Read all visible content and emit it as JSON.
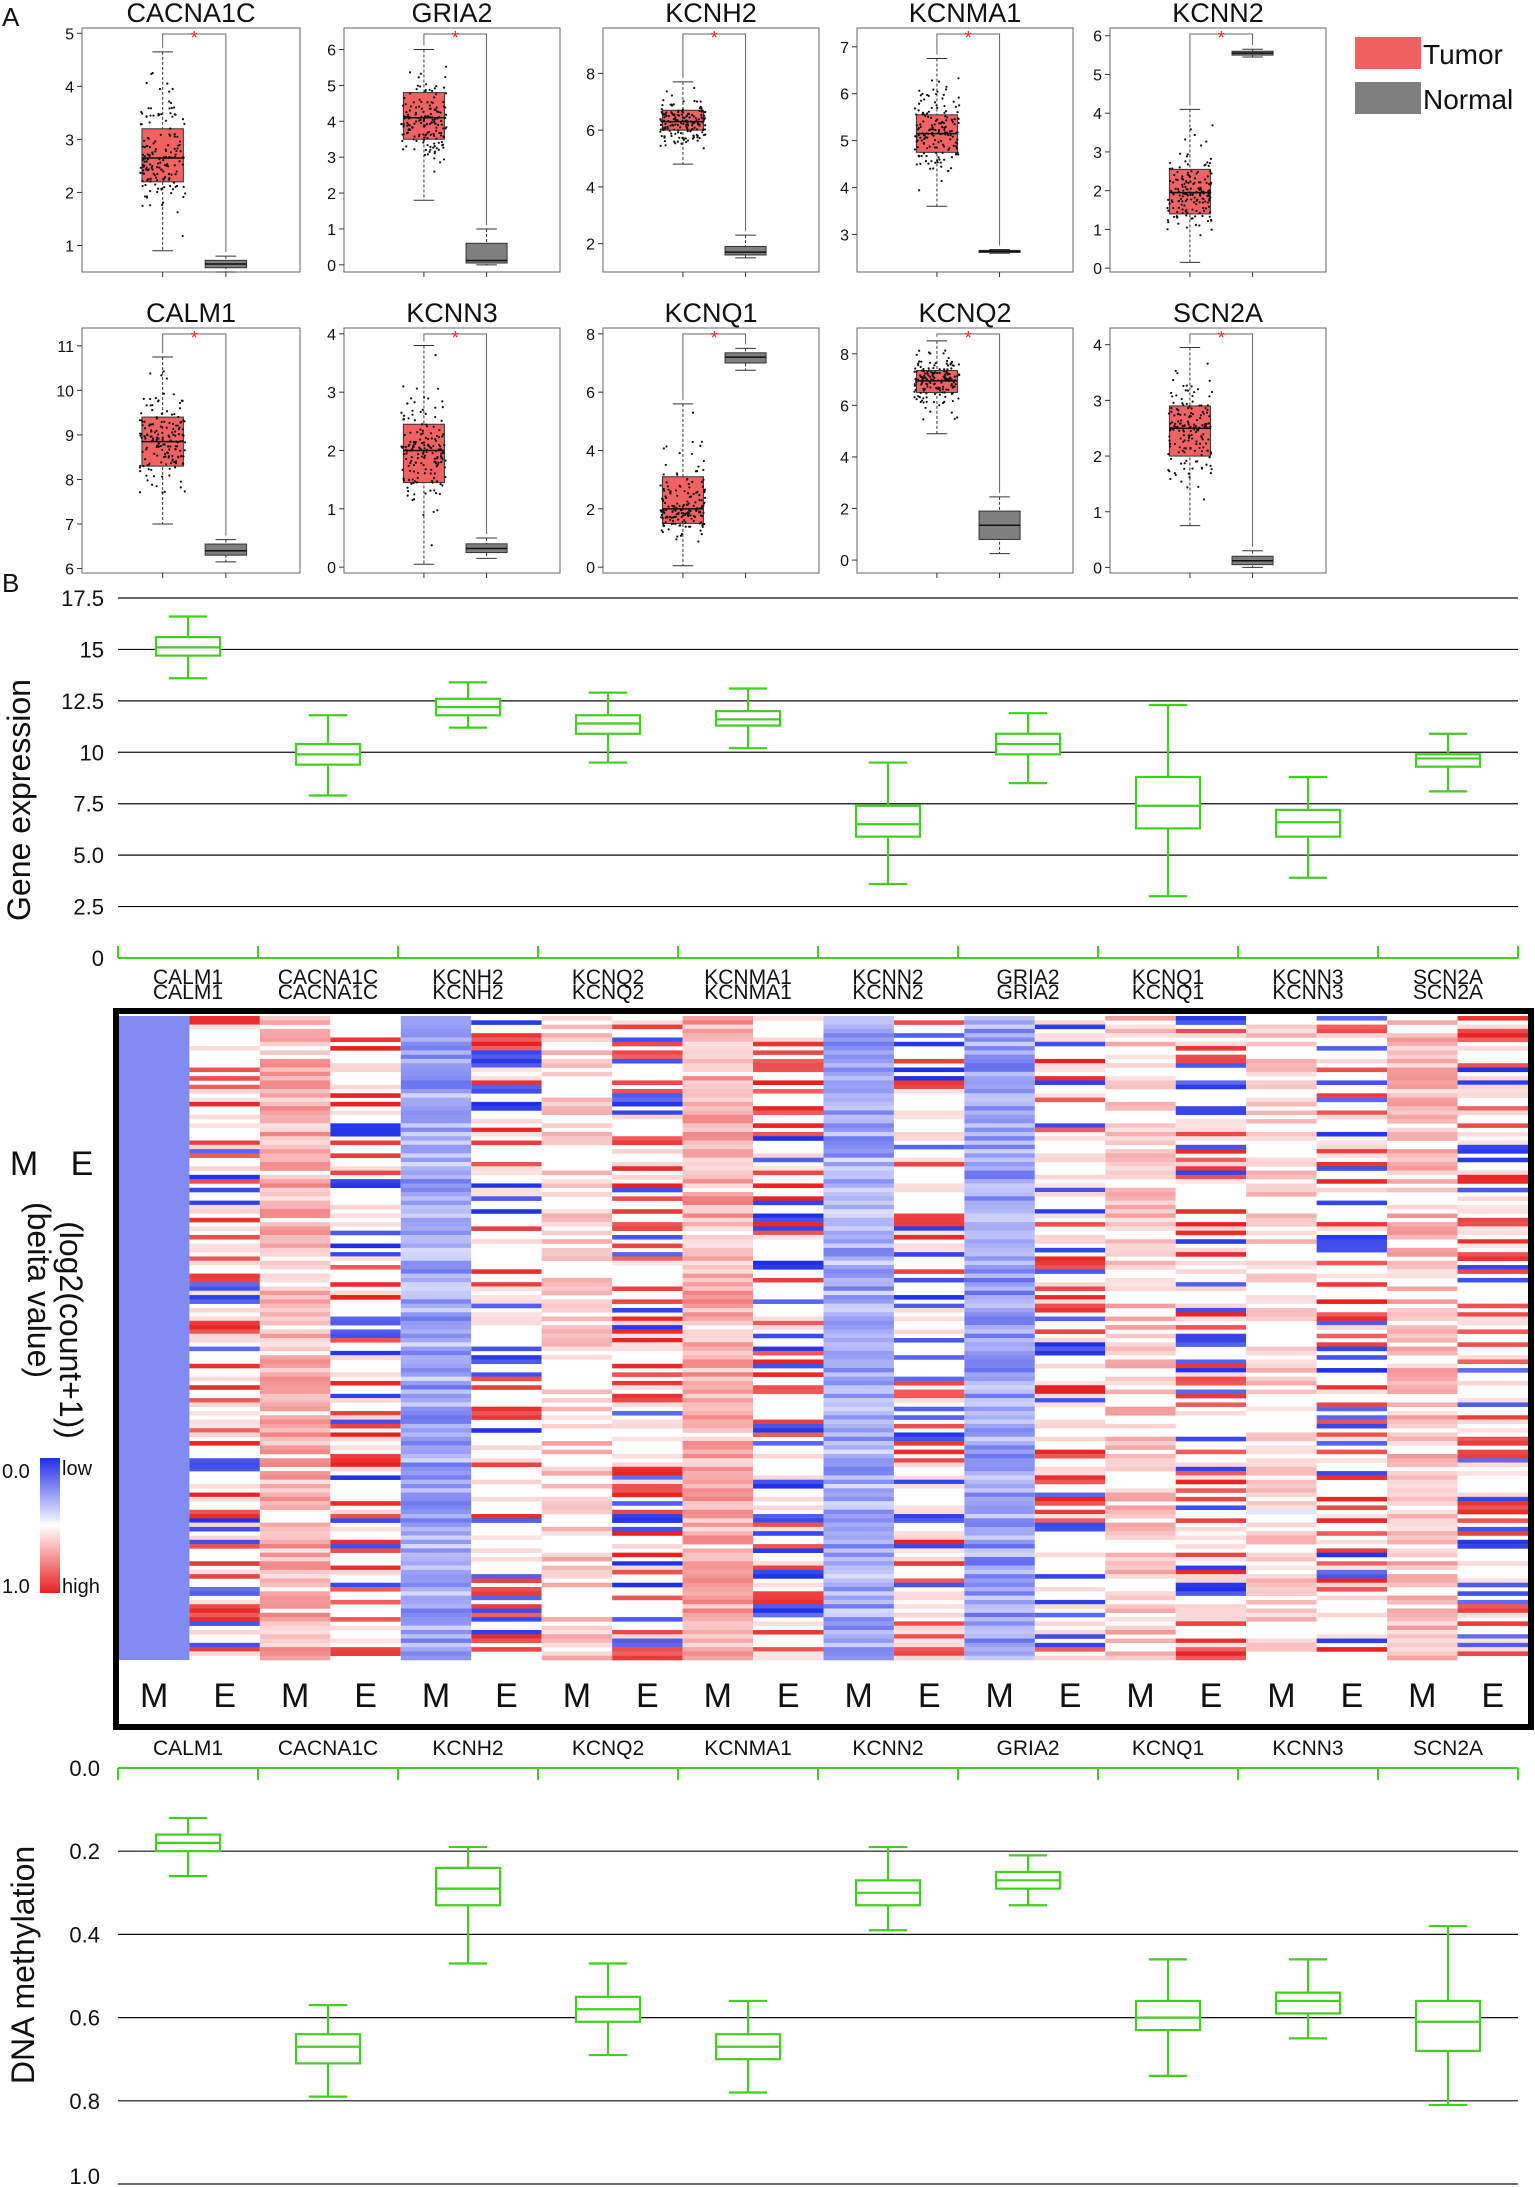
{
  "panel_labels": {
    "a": "A",
    "b": "B"
  },
  "colors": {
    "tumor": "#f26262",
    "normal": "#7f7f7f",
    "green": "#44cc22",
    "low": "#1f2fe8",
    "high": "#e81f1f"
  },
  "legend": {
    "tumor": "Tumor",
    "normal": "Normal"
  },
  "significance_marker": "*",
  "chart_data": [
    {
      "type": "boxplot",
      "panel": "A",
      "subplots": [
        {
          "title": "CACNA1C",
          "ylim": [
            0.5,
            5.1
          ],
          "yticks": [
            1,
            2,
            3,
            4,
            5
          ],
          "tumor": {
            "min": 0.9,
            "q1": 2.2,
            "median": 2.65,
            "q3": 3.2,
            "max": 4.65
          },
          "normal": {
            "min": 0.5,
            "q1": 0.58,
            "median": 0.65,
            "q3": 0.72,
            "max": 0.8
          }
        },
        {
          "title": "GRIA2",
          "ylim": [
            -0.2,
            6.6
          ],
          "yticks": [
            0,
            1,
            2,
            3,
            4,
            5,
            6
          ],
          "tumor": {
            "min": 1.8,
            "q1": 3.5,
            "median": 4.1,
            "q3": 4.8,
            "max": 6.0
          },
          "normal": {
            "min": 0.0,
            "q1": 0.05,
            "median": 0.12,
            "q3": 0.6,
            "max": 1.0
          }
        },
        {
          "title": "KCNH2",
          "ylim": [
            1.0,
            9.6
          ],
          "yticks": [
            2,
            4,
            6,
            8
          ],
          "tumor": {
            "min": 4.8,
            "q1": 6.0,
            "median": 6.3,
            "q3": 6.7,
            "max": 7.7
          },
          "normal": {
            "min": 1.5,
            "q1": 1.6,
            "median": 1.7,
            "q3": 1.9,
            "max": 2.3
          }
        },
        {
          "title": "KCNMA1",
          "ylim": [
            2.2,
            7.4
          ],
          "yticks": [
            3,
            4,
            5,
            6,
            7
          ],
          "tumor": {
            "min": 3.6,
            "q1": 4.75,
            "median": 5.15,
            "q3": 5.55,
            "max": 6.75
          },
          "normal": {
            "min": 2.6,
            "q1": 2.62,
            "median": 2.64,
            "q3": 2.66,
            "max": 2.68
          }
        },
        {
          "title": "KCNN2",
          "ylim": [
            -0.1,
            6.2
          ],
          "yticks": [
            0,
            1,
            2,
            3,
            4,
            5,
            6
          ],
          "tumor": {
            "min": 0.15,
            "q1": 1.4,
            "median": 1.95,
            "q3": 2.55,
            "max": 4.1
          },
          "normal": {
            "min": 5.45,
            "q1": 5.5,
            "median": 5.55,
            "q3": 5.6,
            "max": 5.65
          }
        },
        {
          "title": "CALM1",
          "ylim": [
            5.9,
            11.4
          ],
          "yticks": [
            6,
            7,
            8,
            9,
            10,
            11
          ],
          "tumor": {
            "min": 7.0,
            "q1": 8.3,
            "median": 8.85,
            "q3": 9.4,
            "max": 10.75
          },
          "normal": {
            "min": 6.15,
            "q1": 6.3,
            "median": 6.4,
            "q3": 6.55,
            "max": 6.65
          }
        },
        {
          "title": "KCNN3",
          "ylim": [
            -0.1,
            4.1
          ],
          "yticks": [
            0,
            1,
            2,
            3,
            4
          ],
          "tumor": {
            "min": 0.05,
            "q1": 1.45,
            "median": 2.0,
            "q3": 2.45,
            "max": 3.8
          },
          "normal": {
            "min": 0.15,
            "q1": 0.25,
            "median": 0.32,
            "q3": 0.4,
            "max": 0.5
          }
        },
        {
          "title": "KCNQ1",
          "ylim": [
            -0.2,
            8.2
          ],
          "yticks": [
            0,
            2,
            4,
            6,
            8
          ],
          "tumor": {
            "min": 0.05,
            "q1": 1.5,
            "median": 2.0,
            "q3": 3.1,
            "max": 5.6
          },
          "normal": {
            "min": 6.75,
            "q1": 7.0,
            "median": 7.2,
            "q3": 7.35,
            "max": 7.5
          }
        },
        {
          "title": "KCNQ2",
          "ylim": [
            -0.5,
            9.0
          ],
          "yticks": [
            0,
            2,
            4,
            6,
            8
          ],
          "tumor": {
            "min": 4.9,
            "q1": 6.5,
            "median": 6.95,
            "q3": 7.35,
            "max": 8.5
          },
          "normal": {
            "min": 0.25,
            "q1": 0.8,
            "median": 1.35,
            "q3": 1.9,
            "max": 2.45
          }
        },
        {
          "title": "SCN2A",
          "ylim": [
            -0.1,
            4.3
          ],
          "yticks": [
            0,
            1,
            2,
            3,
            4
          ],
          "tumor": {
            "min": 0.75,
            "q1": 2.0,
            "median": 2.5,
            "q3": 2.9,
            "max": 3.95
          },
          "normal": {
            "min": 0.0,
            "q1": 0.05,
            "median": 0.12,
            "q3": 0.2,
            "max": 0.3
          }
        }
      ]
    },
    {
      "type": "boxplot",
      "panel": "B-expression",
      "ylabel": "Gene expression",
      "ylim": [
        0,
        17.5
      ],
      "yticks": [
        "0",
        "2.5",
        "5.0",
        "7.5",
        "10",
        "12.5",
        "15",
        "17.5"
      ],
      "categories": [
        "CALM1",
        "CACNA1C",
        "KCNH2",
        "KCNQ2",
        "KCNMA1",
        "KCNN2",
        "GRIA2",
        "KCNQ1",
        "KCNN3",
        "SCN2A"
      ],
      "boxes": [
        {
          "min": 13.6,
          "q1": 14.7,
          "median": 15.1,
          "q3": 15.6,
          "max": 16.6
        },
        {
          "min": 7.9,
          "q1": 9.4,
          "median": 9.9,
          "q3": 10.4,
          "max": 11.8
        },
        {
          "min": 11.2,
          "q1": 11.8,
          "median": 12.2,
          "q3": 12.6,
          "max": 13.4
        },
        {
          "min": 9.5,
          "q1": 10.9,
          "median": 11.4,
          "q3": 11.8,
          "max": 12.9
        },
        {
          "min": 10.2,
          "q1": 11.3,
          "median": 11.6,
          "q3": 12.0,
          "max": 13.1
        },
        {
          "min": 3.6,
          "q1": 5.9,
          "median": 6.5,
          "q3": 7.4,
          "max": 9.5
        },
        {
          "min": 8.5,
          "q1": 9.9,
          "median": 10.4,
          "q3": 10.9,
          "max": 11.9
        },
        {
          "min": 3.0,
          "q1": 6.3,
          "median": 7.4,
          "q3": 8.8,
          "max": 12.3
        },
        {
          "min": 3.9,
          "q1": 5.9,
          "median": 6.6,
          "q3": 7.2,
          "max": 8.8
        },
        {
          "min": 8.1,
          "q1": 9.3,
          "median": 9.7,
          "q3": 9.9,
          "max": 10.9
        }
      ]
    },
    {
      "type": "heatmap",
      "panel": "B-heatmap",
      "ylabel_m": "M (beita value)",
      "ylabel_e": "E (log2(count+1))",
      "colorbar": {
        "min_label": "0.0",
        "max_label": "1.0",
        "low_label": "low",
        "high_label": "high"
      },
      "columns": [
        "CALM1",
        "CACNA1C",
        "KCNH2",
        "KCNQ2",
        "KCNMA1",
        "KCNN2",
        "GRIA2",
        "KCNQ1",
        "KCNN3",
        "SCN2A"
      ],
      "sub_labels": [
        "M",
        "E"
      ],
      "m_mean_beta": [
        0.18,
        0.66,
        0.29,
        0.58,
        0.67,
        0.3,
        0.27,
        0.6,
        0.56,
        0.62
      ]
    },
    {
      "type": "boxplot",
      "panel": "B-methylation",
      "ylabel": "DNA methylation",
      "ylim": [
        0,
        1.0
      ],
      "inverted": true,
      "yticks": [
        "0.0",
        "0.2",
        "0.4",
        "0.6",
        "0.8",
        "1.0"
      ],
      "categories": [
        "CALM1",
        "CACNA1C",
        "KCNH2",
        "KCNQ2",
        "KCNMA1",
        "KCNN2",
        "GRIA2",
        "KCNQ1",
        "KCNN3",
        "SCN2A"
      ],
      "boxes": [
        {
          "min": 0.12,
          "q1": 0.16,
          "median": 0.18,
          "q3": 0.2,
          "max": 0.26
        },
        {
          "min": 0.57,
          "q1": 0.64,
          "median": 0.67,
          "q3": 0.71,
          "max": 0.79
        },
        {
          "min": 0.19,
          "q1": 0.24,
          "median": 0.29,
          "q3": 0.33,
          "max": 0.47
        },
        {
          "min": 0.47,
          "q1": 0.55,
          "median": 0.58,
          "q3": 0.61,
          "max": 0.69
        },
        {
          "min": 0.56,
          "q1": 0.64,
          "median": 0.67,
          "q3": 0.7,
          "max": 0.78
        },
        {
          "min": 0.19,
          "q1": 0.27,
          "median": 0.3,
          "q3": 0.33,
          "max": 0.39
        },
        {
          "min": 0.21,
          "q1": 0.25,
          "median": 0.27,
          "q3": 0.29,
          "max": 0.33
        },
        {
          "min": 0.46,
          "q1": 0.56,
          "median": 0.6,
          "q3": 0.63,
          "max": 0.74
        },
        {
          "min": 0.46,
          "q1": 0.54,
          "median": 0.56,
          "q3": 0.59,
          "max": 0.65
        },
        {
          "min": 0.38,
          "q1": 0.56,
          "median": 0.61,
          "q3": 0.68,
          "max": 0.81
        }
      ]
    }
  ]
}
